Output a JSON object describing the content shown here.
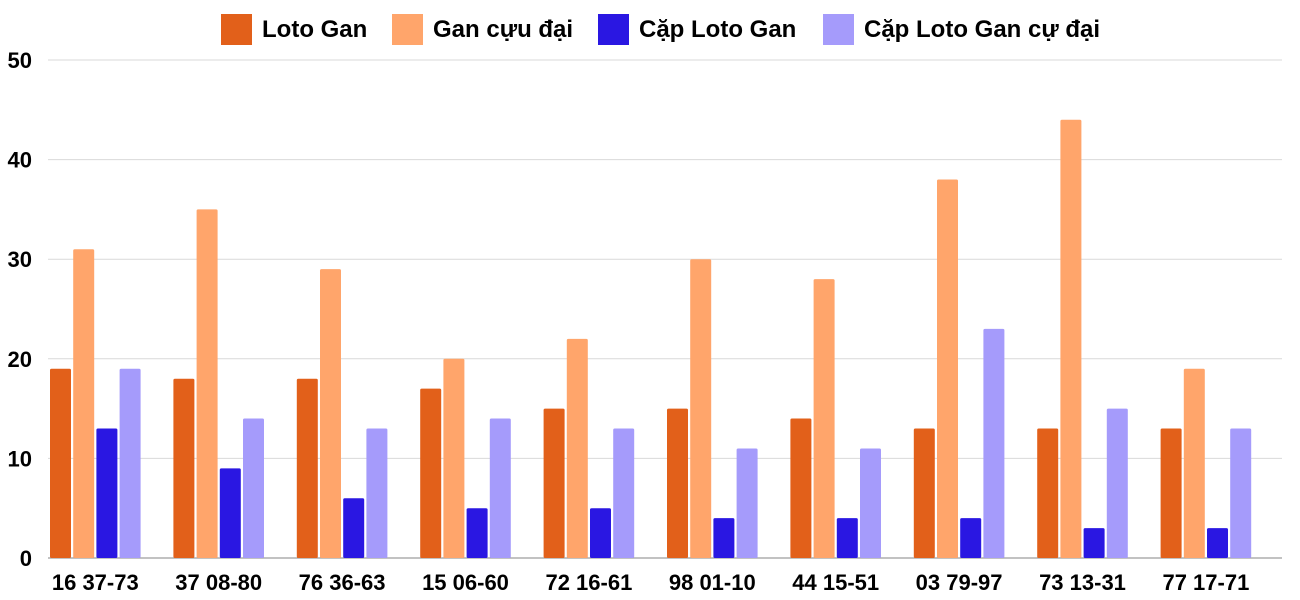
{
  "chart_data": {
    "type": "bar",
    "title": "",
    "xlabel": "",
    "ylabel": "",
    "ylim": [
      0,
      50
    ],
    "yticks": [
      0,
      10,
      20,
      30,
      40,
      50
    ],
    "grid": true,
    "legend_position": "top-center",
    "categories": [
      "16 37-73",
      "37 08-80",
      "76 36-63",
      "15 06-60",
      "72 16-61",
      "98 01-10",
      "44 15-51",
      "03 79-97",
      "73 13-31",
      "77 17-71"
    ],
    "series": [
      {
        "name": "Loto Gan",
        "color": "#E2601A",
        "values": [
          19,
          18,
          18,
          17,
          15,
          15,
          14,
          13,
          13,
          13
        ]
      },
      {
        "name": "Gan cựu đại",
        "color": "#FFA56B",
        "values": [
          31,
          35,
          29,
          20,
          22,
          30,
          28,
          38,
          44,
          19
        ]
      },
      {
        "name": "Cặp Loto Gan",
        "color": "#2A17E2",
        "values": [
          13,
          9,
          6,
          5,
          5,
          4,
          4,
          4,
          3,
          3
        ]
      },
      {
        "name": "Cặp Loto Gan cự đại",
        "color": "#A59BFB",
        "values": [
          19,
          14,
          13,
          14,
          13,
          11,
          11,
          23,
          15,
          13
        ]
      }
    ]
  }
}
